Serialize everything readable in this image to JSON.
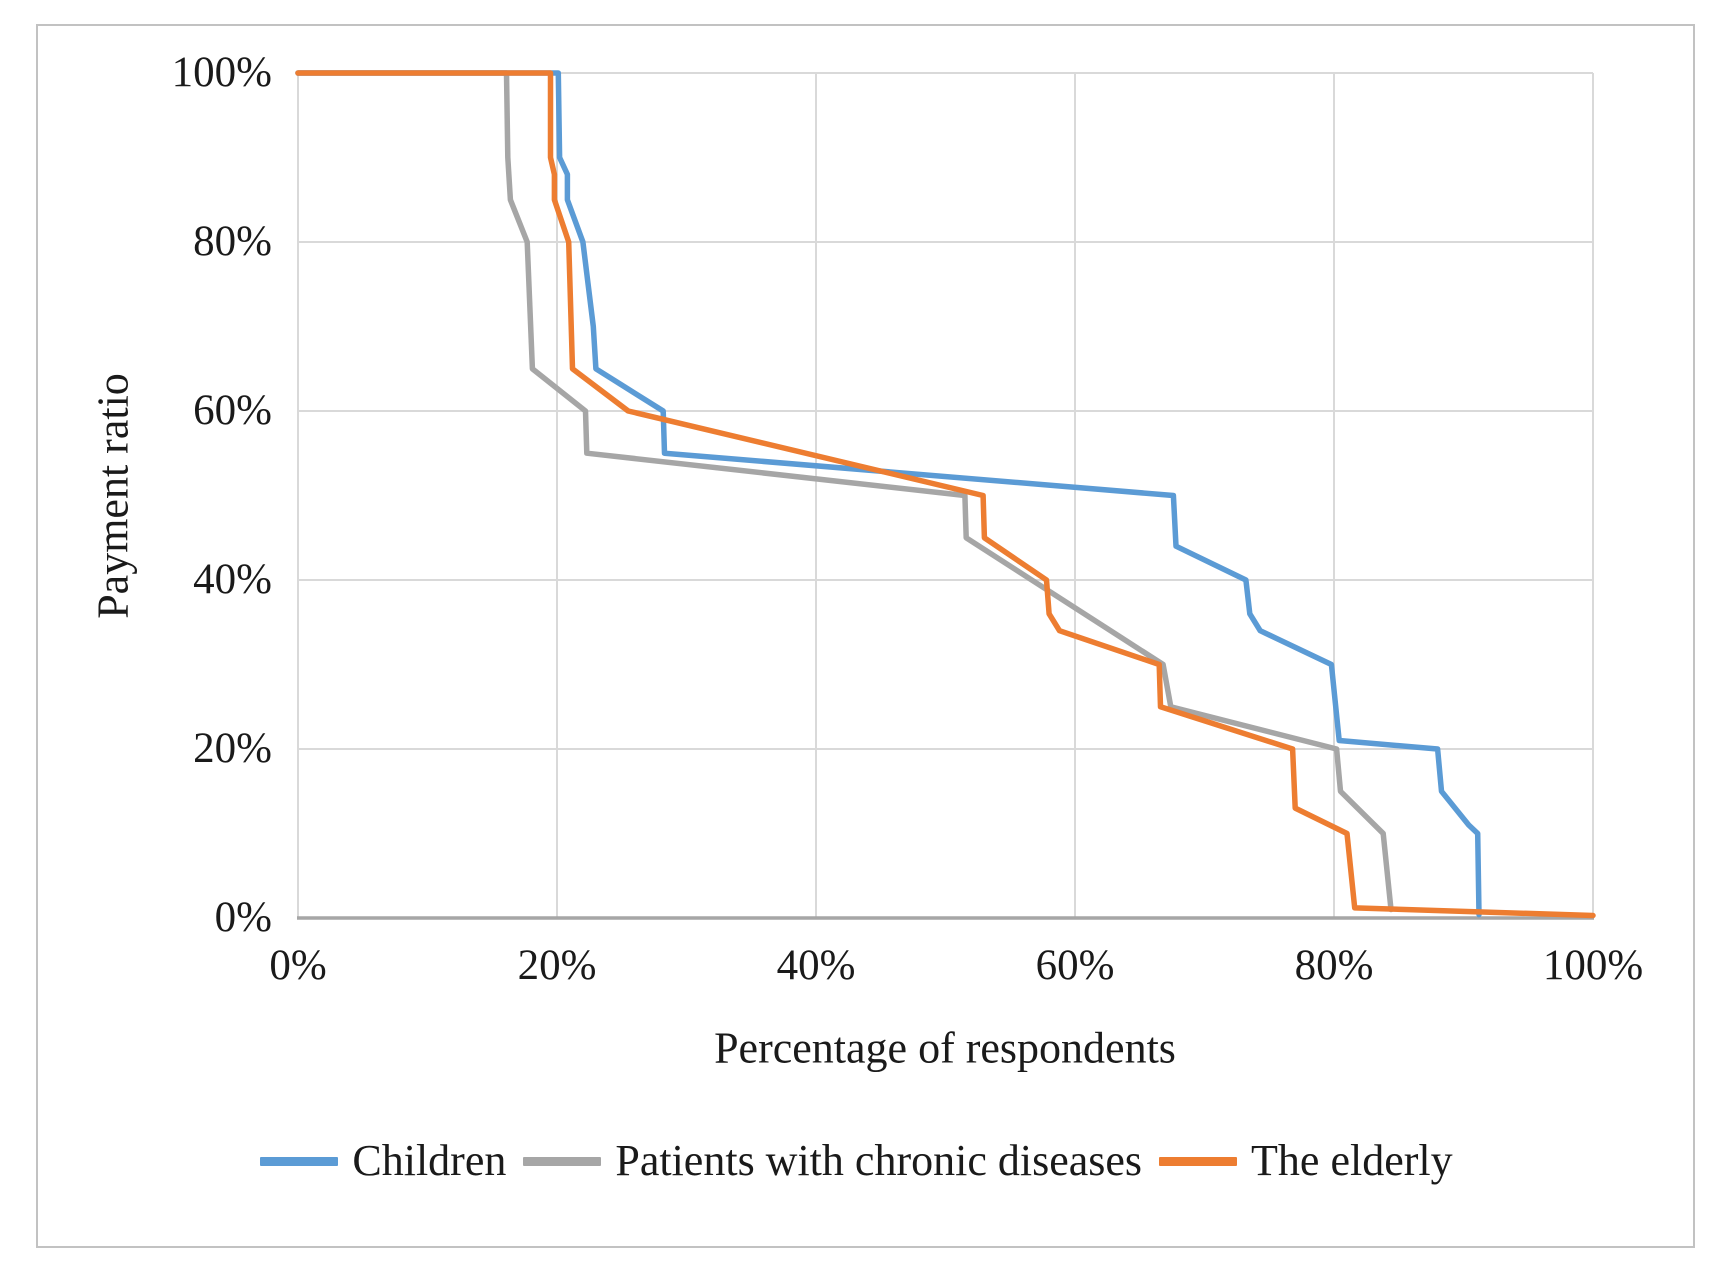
{
  "figure": {
    "y_axis_title": "Payment ratio",
    "x_axis_title": "Percentage of respondents"
  },
  "colors": {
    "grid": "#d9d9d9",
    "axis_line": "#a6a6a6",
    "text": "#1a1a1a",
    "frame_border": "#c2c2c2",
    "children_blue": "#5B9BD5",
    "chronic_gray": "#A6A6A6",
    "elderly_orange": "#ED7D31"
  },
  "legend": {
    "items": [
      {
        "label": "Children",
        "color": "#5B9BD5"
      },
      {
        "label": "Patients with chronic diseases",
        "color": "#A6A6A6"
      },
      {
        "label": "The elderly",
        "color": "#ED7D31"
      }
    ]
  },
  "chart_data": {
    "type": "line",
    "title": "",
    "xlabel": "Percentage of respondents",
    "ylabel": "Payment ratio",
    "xlim": [
      0,
      100
    ],
    "ylim": [
      0,
      100
    ],
    "x_tick_values": [
      0,
      20,
      40,
      60,
      80,
      100
    ],
    "x_tick_labels": [
      "0%",
      "20%",
      "40%",
      "60%",
      "80%",
      "100%"
    ],
    "y_tick_values": [
      0,
      20,
      40,
      60,
      80,
      100
    ],
    "y_tick_labels": [
      "0%",
      "20%",
      "40%",
      "60%",
      "80%",
      "100%"
    ],
    "grid": true,
    "legend_position": "bottom",
    "units": "percent of respondents (x) vs payment ratio (y)",
    "series": [
      {
        "name": "Children",
        "color": "#5B9BD5",
        "points": [
          [
            0,
            100
          ],
          [
            20.1,
            100
          ],
          [
            20.2,
            90
          ],
          [
            20.8,
            88
          ],
          [
            20.8,
            85
          ],
          [
            22.0,
            80
          ],
          [
            22.8,
            70
          ],
          [
            23.0,
            65
          ],
          [
            28.2,
            60
          ],
          [
            28.3,
            55
          ],
          [
            67.6,
            50
          ],
          [
            67.8,
            44
          ],
          [
            73.2,
            40
          ],
          [
            73.5,
            36
          ],
          [
            74.3,
            34
          ],
          [
            79.8,
            30
          ],
          [
            80.4,
            21
          ],
          [
            88.0,
            20
          ],
          [
            88.3,
            15
          ],
          [
            90.4,
            11
          ],
          [
            91.1,
            10
          ],
          [
            91.2,
            0.4
          ]
        ]
      },
      {
        "name": "Patients with chronic diseases",
        "color": "#A6A6A6",
        "points": [
          [
            0,
            100
          ],
          [
            16.1,
            100
          ],
          [
            16.2,
            90
          ],
          [
            16.4,
            85
          ],
          [
            17.7,
            80
          ],
          [
            18.1,
            65
          ],
          [
            22.2,
            60
          ],
          [
            22.3,
            55
          ],
          [
            51.5,
            50
          ],
          [
            51.6,
            45
          ],
          [
            66.8,
            30
          ],
          [
            67.4,
            25
          ],
          [
            80.2,
            20
          ],
          [
            80.5,
            15
          ],
          [
            83.8,
            10
          ],
          [
            84.4,
            1
          ]
        ]
      },
      {
        "name": "The elderly",
        "color": "#ED7D31",
        "points": [
          [
            0,
            100
          ],
          [
            19.5,
            100
          ],
          [
            19.5,
            90
          ],
          [
            19.8,
            88
          ],
          [
            19.8,
            85
          ],
          [
            20.9,
            80
          ],
          [
            21.2,
            65
          ],
          [
            25.5,
            60
          ],
          [
            52.9,
            50
          ],
          [
            53.0,
            45
          ],
          [
            57.8,
            40
          ],
          [
            58.0,
            36
          ],
          [
            58.8,
            34
          ],
          [
            66.5,
            30
          ],
          [
            66.6,
            25
          ],
          [
            76.8,
            20
          ],
          [
            77.0,
            13
          ],
          [
            81.0,
            10
          ],
          [
            81.6,
            1.2
          ],
          [
            100,
            0.3
          ]
        ]
      }
    ]
  }
}
